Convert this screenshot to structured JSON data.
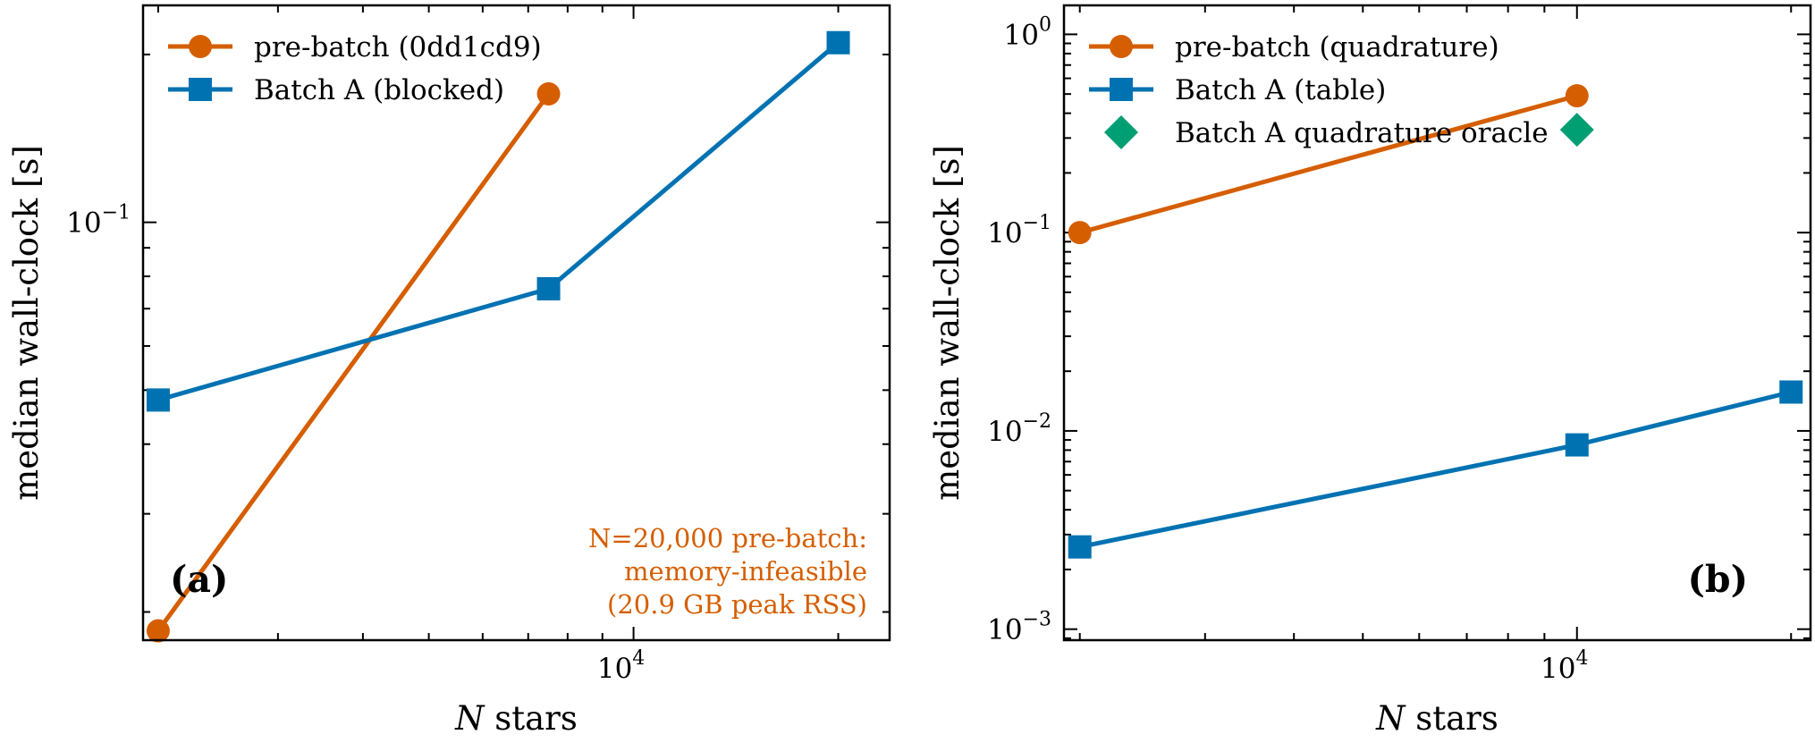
{
  "colors": {
    "pre_batch": "#d55e00",
    "batch_a": "#0072b2",
    "oracle": "#009e73"
  },
  "chart_data": [
    {
      "type": "line",
      "panel_label": "(a)",
      "xlabel_var": "N",
      "xlabel_text": " stars",
      "ylabel": "median wall-clock [s]",
      "xscale": "log",
      "yscale": "log",
      "xlim": [
        1900,
        23800
      ],
      "ylim": [
        0.0178,
        0.245
      ],
      "x_major_ticks": [
        {
          "value": 10000,
          "base": "10",
          "exp": "4"
        }
      ],
      "y_major_ticks": [
        {
          "value": 0.1,
          "base": "10",
          "exp": "−1"
        }
      ],
      "grid": false,
      "legend_position": "top-left",
      "series": [
        {
          "name": "pre-batch (0dd1cd9)",
          "marker": "circle",
          "color": "#d55e00",
          "x": [
            2000,
            7500
          ],
          "y": [
            0.0185,
            0.17
          ]
        },
        {
          "name": "Batch A (blocked)",
          "marker": "square",
          "color": "#0072b2",
          "x": [
            2000,
            7500,
            20000
          ],
          "y": [
            0.048,
            0.076,
            0.21
          ]
        }
      ],
      "annotation": [
        "N=20,000 pre-batch:",
        "memory-infeasible",
        "(20.9 GB peak RSS)"
      ]
    },
    {
      "type": "line",
      "panel_label": "(b)",
      "xlabel_var": "N",
      "xlabel_text": " stars",
      "ylabel": "median wall-clock [s]",
      "xscale": "log",
      "yscale": "log",
      "xlim": [
        1900,
        21300
      ],
      "ylim": [
        0.00088,
        1.4
      ],
      "x_major_ticks": [
        {
          "value": 10000,
          "base": "10",
          "exp": "4"
        }
      ],
      "y_major_ticks": [
        {
          "value": 1,
          "base": "10",
          "exp": "0"
        },
        {
          "value": 0.1,
          "base": "10",
          "exp": "−1"
        },
        {
          "value": 0.01,
          "base": "10",
          "exp": "−2"
        },
        {
          "value": 0.001,
          "base": "10",
          "exp": "−3"
        }
      ],
      "grid": false,
      "legend_position": "top-left",
      "series": [
        {
          "name": "pre-batch (quadrature)",
          "marker": "circle",
          "color": "#d55e00",
          "x": [
            2000,
            10000
          ],
          "y": [
            0.1,
            0.49
          ]
        },
        {
          "name": "Batch A (table)",
          "marker": "square",
          "color": "#0072b2",
          "x": [
            2000,
            10000,
            20000
          ],
          "y": [
            0.0026,
            0.0085,
            0.0157
          ]
        },
        {
          "name": "Batch A quadrature oracle",
          "marker": "diamond",
          "color": "#009e73",
          "x": [
            10000
          ],
          "y": [
            0.33
          ],
          "line": false
        }
      ]
    }
  ]
}
